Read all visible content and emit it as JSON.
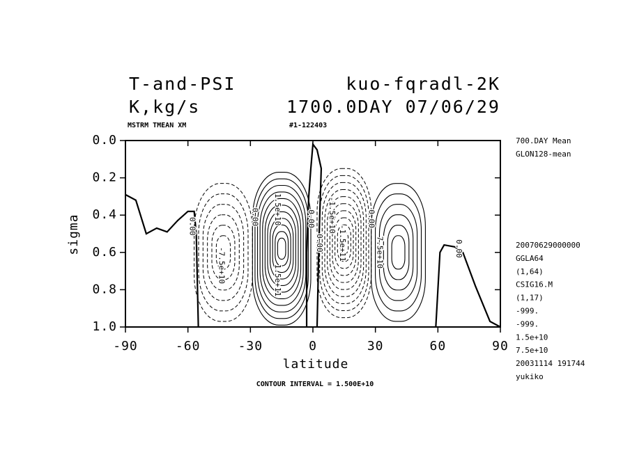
{
  "chart_data": {
    "type": "contour",
    "title": "T-and-PSI",
    "title_right": "kuo-fqradl-2K",
    "subtitle": "K,kg/s",
    "subtitle_right": "1700.0DAY 07/06/29",
    "info_left": "MSTRM TMEAN XM",
    "info_mid": "#1-122403",
    "xlabel": "latitude",
    "ylabel": "sigma",
    "footer": "CONTOUR INTERVAL = 1.500E+10",
    "xlim": [
      -90,
      90
    ],
    "xticks": [
      -90,
      -60,
      -30,
      0,
      30,
      60,
      90
    ],
    "ylim": [
      1.0,
      0.0
    ],
    "yticks": [
      {
        "value": 0,
        "label": "0.0"
      },
      0.2,
      0.4,
      0.6,
      0.8,
      {
        "value": 1,
        "label": "1.0"
      }
    ],
    "side_top": [
      "700.DAY Mean",
      "GLON128-mean"
    ],
    "side_bottom": [
      "20070629000000",
      "GGLA64",
      "(1,64)",
      "CSIG16.M",
      "(1,17)",
      "-999.",
      "-999.",
      "1.5e+10",
      "7.5e+10",
      "20031114 191744",
      "yukiko"
    ],
    "cells": [
      {
        "lat": -43,
        "sigma": 0.6,
        "half_lat": 14,
        "half_sigma": 0.37,
        "levels": [
          -15000000000,
          -30000000000,
          -45000000000,
          -60000000000,
          -75000000000,
          -90000000000
        ]
      },
      {
        "lat": -15,
        "sigma": 0.58,
        "half_lat": 14,
        "half_sigma": 0.41,
        "levels": [
          15000000000,
          30000000000,
          45000000000,
          60000000000,
          75000000000,
          90000000000,
          105000000000,
          120000000000,
          135000000000,
          150000000000,
          165000000000
        ]
      },
      {
        "lat": 15,
        "sigma": 0.55,
        "half_lat": 13,
        "half_sigma": 0.4,
        "levels": [
          -15000000000,
          -30000000000,
          -45000000000,
          -60000000000,
          -75000000000,
          -90000000000,
          -105000000000,
          -120000000000,
          -135000000000,
          -150000000000
        ]
      },
      {
        "lat": 41,
        "sigma": 0.6,
        "half_lat": 13,
        "half_sigma": 0.37,
        "levels": [
          15000000000,
          30000000000,
          45000000000,
          60000000000,
          75000000000,
          90000000000
        ]
      }
    ],
    "zero_lines": [
      {
        "lat": [
          -90,
          -85,
          -80,
          -75,
          -70,
          -65,
          -60,
          -57,
          -56,
          -55
        ],
        "sigma": [
          0.29,
          0.32,
          0.5,
          0.47,
          0.49,
          0.43,
          0.38,
          0.38,
          0.5,
          1.0
        ]
      },
      {
        "lat": [
          -3,
          -3,
          -2,
          -1,
          0,
          2,
          4,
          3,
          2
        ],
        "sigma": [
          1.0,
          0.6,
          0.3,
          0.15,
          0.02,
          0.05,
          0.15,
          0.5,
          1.0
        ]
      },
      {
        "lat": [
          59,
          61,
          63,
          68,
          72,
          78,
          85,
          90
        ],
        "sigma": [
          1.0,
          0.6,
          0.56,
          0.57,
          0.6,
          0.78,
          0.97,
          1.0
        ]
      }
    ],
    "contour_labels": [
      {
        "text": "0.00",
        "lat": -58,
        "sigma": 0.46
      },
      {
        "text": "-7.5e+10",
        "lat": -44,
        "sigma": 0.67
      },
      {
        "text": "0.00",
        "lat": -28,
        "sigma": 0.41
      },
      {
        "text": "1.5e+10",
        "lat": -17,
        "sigma": 0.37
      },
      {
        "text": "1.5e+11",
        "lat": -17,
        "sigma": 0.75
      },
      {
        "text": "0.00",
        "lat": -1,
        "sigma": 0.42
      },
      {
        "text": "0.00",
        "lat": 3,
        "sigma": 0.55
      },
      {
        "text": "-1.5e+10",
        "lat": 9,
        "sigma": 0.4
      },
      {
        "text": "-1.5e+11",
        "lat": 14,
        "sigma": 0.55
      },
      {
        "text": "0.00",
        "lat": 28,
        "sigma": 0.42
      },
      {
        "text": "7.5e+10",
        "lat": 32,
        "sigma": 0.6
      },
      {
        "text": "0.00",
        "lat": 70,
        "sigma": 0.58
      }
    ]
  }
}
